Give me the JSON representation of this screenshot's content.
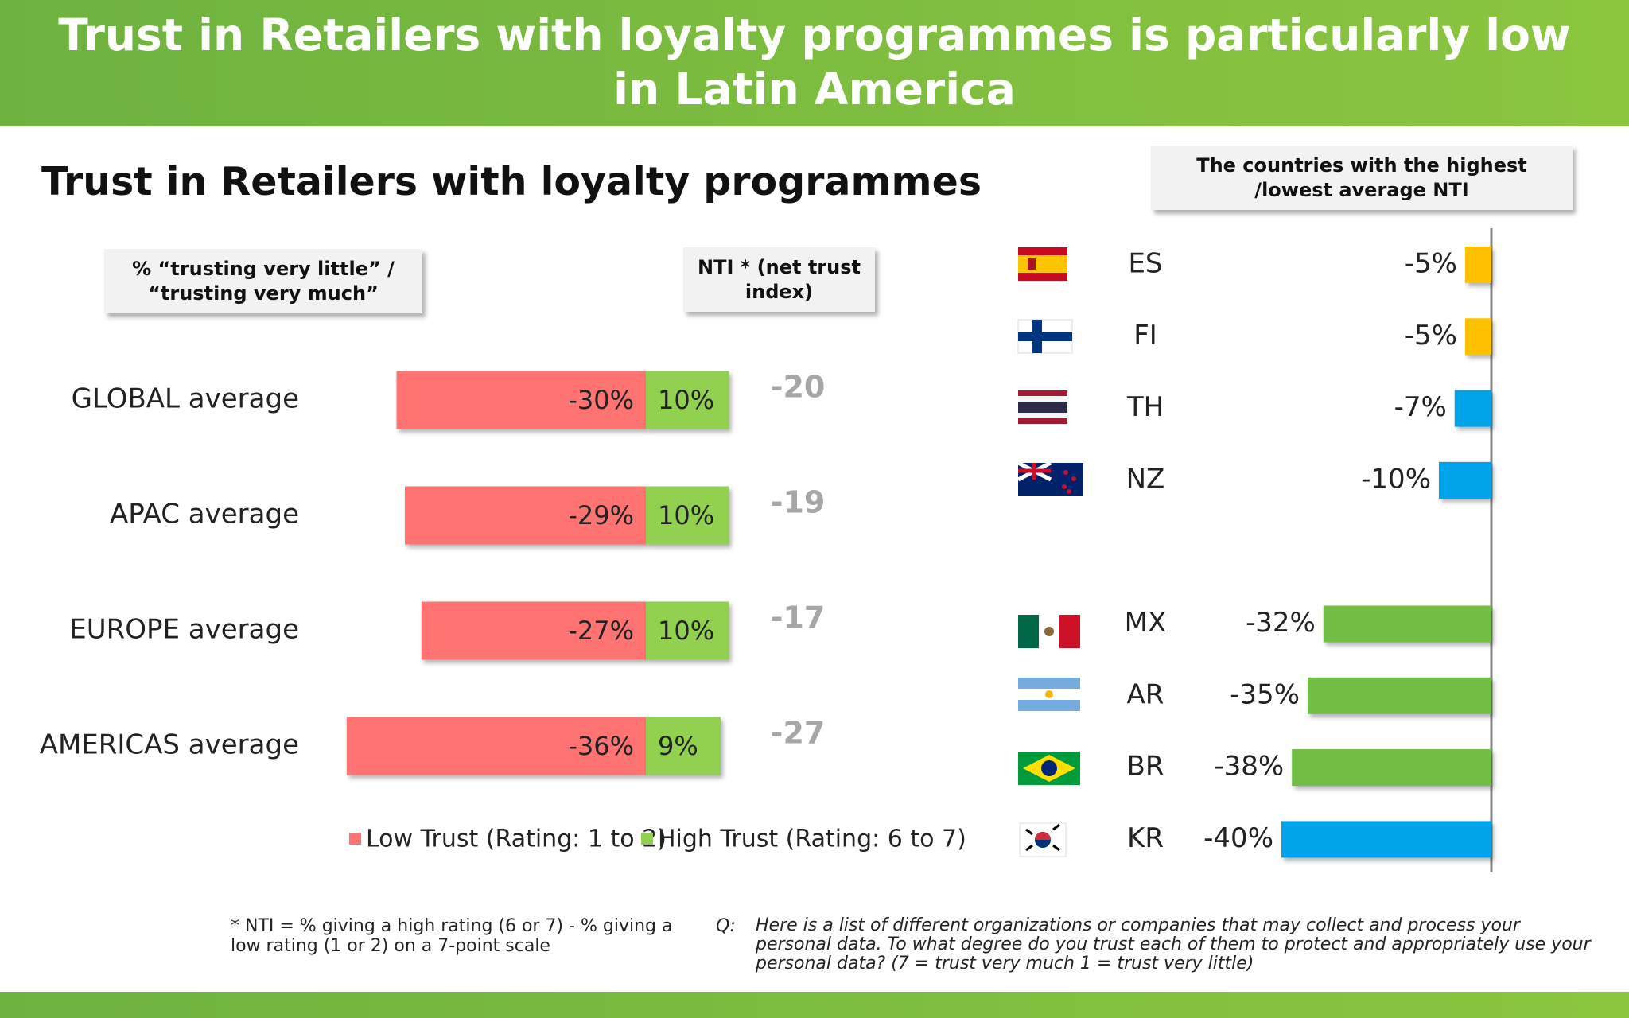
{
  "header": {
    "title": "Trust in Retailers with loyalty programmes is particularly low in Latin America"
  },
  "chart_data": [
    {
      "type": "bar",
      "orientation": "horizontal",
      "stacked": true,
      "title": "Trust in Retailers with loyalty programmes",
      "box_label": "% “trusting very  little” / “trusting very much”",
      "categories": [
        "GLOBAL average",
        "APAC average",
        "EUROPE average",
        "AMERICAS average"
      ],
      "series": [
        {
          "name": "Low Trust (Rating: 1 to 2)",
          "color": "#ff7373",
          "values": [
            -30,
            -29,
            -27,
            -36
          ],
          "value_labels": [
            "-30%",
            "-29%",
            "-27%",
            "-36%"
          ]
        },
        {
          "name": "High Trust (Rating: 6 to 7)",
          "color": "#92d050",
          "values": [
            10,
            10,
            10,
            9
          ],
          "value_labels": [
            "10%",
            "10%",
            "10%",
            "9%"
          ]
        }
      ],
      "nti_label": "NTI * (net trust index)",
      "nti": [
        -20,
        -19,
        -17,
        -27
      ],
      "legend": "bottom"
    },
    {
      "type": "bar",
      "orientation": "horizontal",
      "title": "The countries with the highest /lowest average NTI",
      "categories": [
        "ES",
        "FI",
        "TH",
        "NZ",
        "MX",
        "AR",
        "BR",
        "KR"
      ],
      "values": [
        -5,
        -5,
        -7,
        -10,
        -32,
        -35,
        -38,
        -40
      ],
      "value_labels": [
        "-5%",
        "-5%",
        "-7%",
        "-10%",
        "-32%",
        "-35%",
        "-38%",
        "-40%"
      ],
      "colors": [
        "#ffc000",
        "#ffc000",
        "#00a2e8",
        "#00a2e8",
        "#70bf44",
        "#70bf44",
        "#70bf44",
        "#00a2e8"
      ]
    }
  ],
  "footnotes": {
    "nti_definition": "* NTI = % giving a high rating (6 or 7) - % giving a low rating (1 or 2) on a 7-point scale",
    "question_marker": "Q:",
    "question": "Here is a list of different organizations or companies that may collect and process your personal data.  To what degree do you trust each of them to protect and appropriately use your personal data? (7 = trust very much 1 = trust very little)"
  }
}
